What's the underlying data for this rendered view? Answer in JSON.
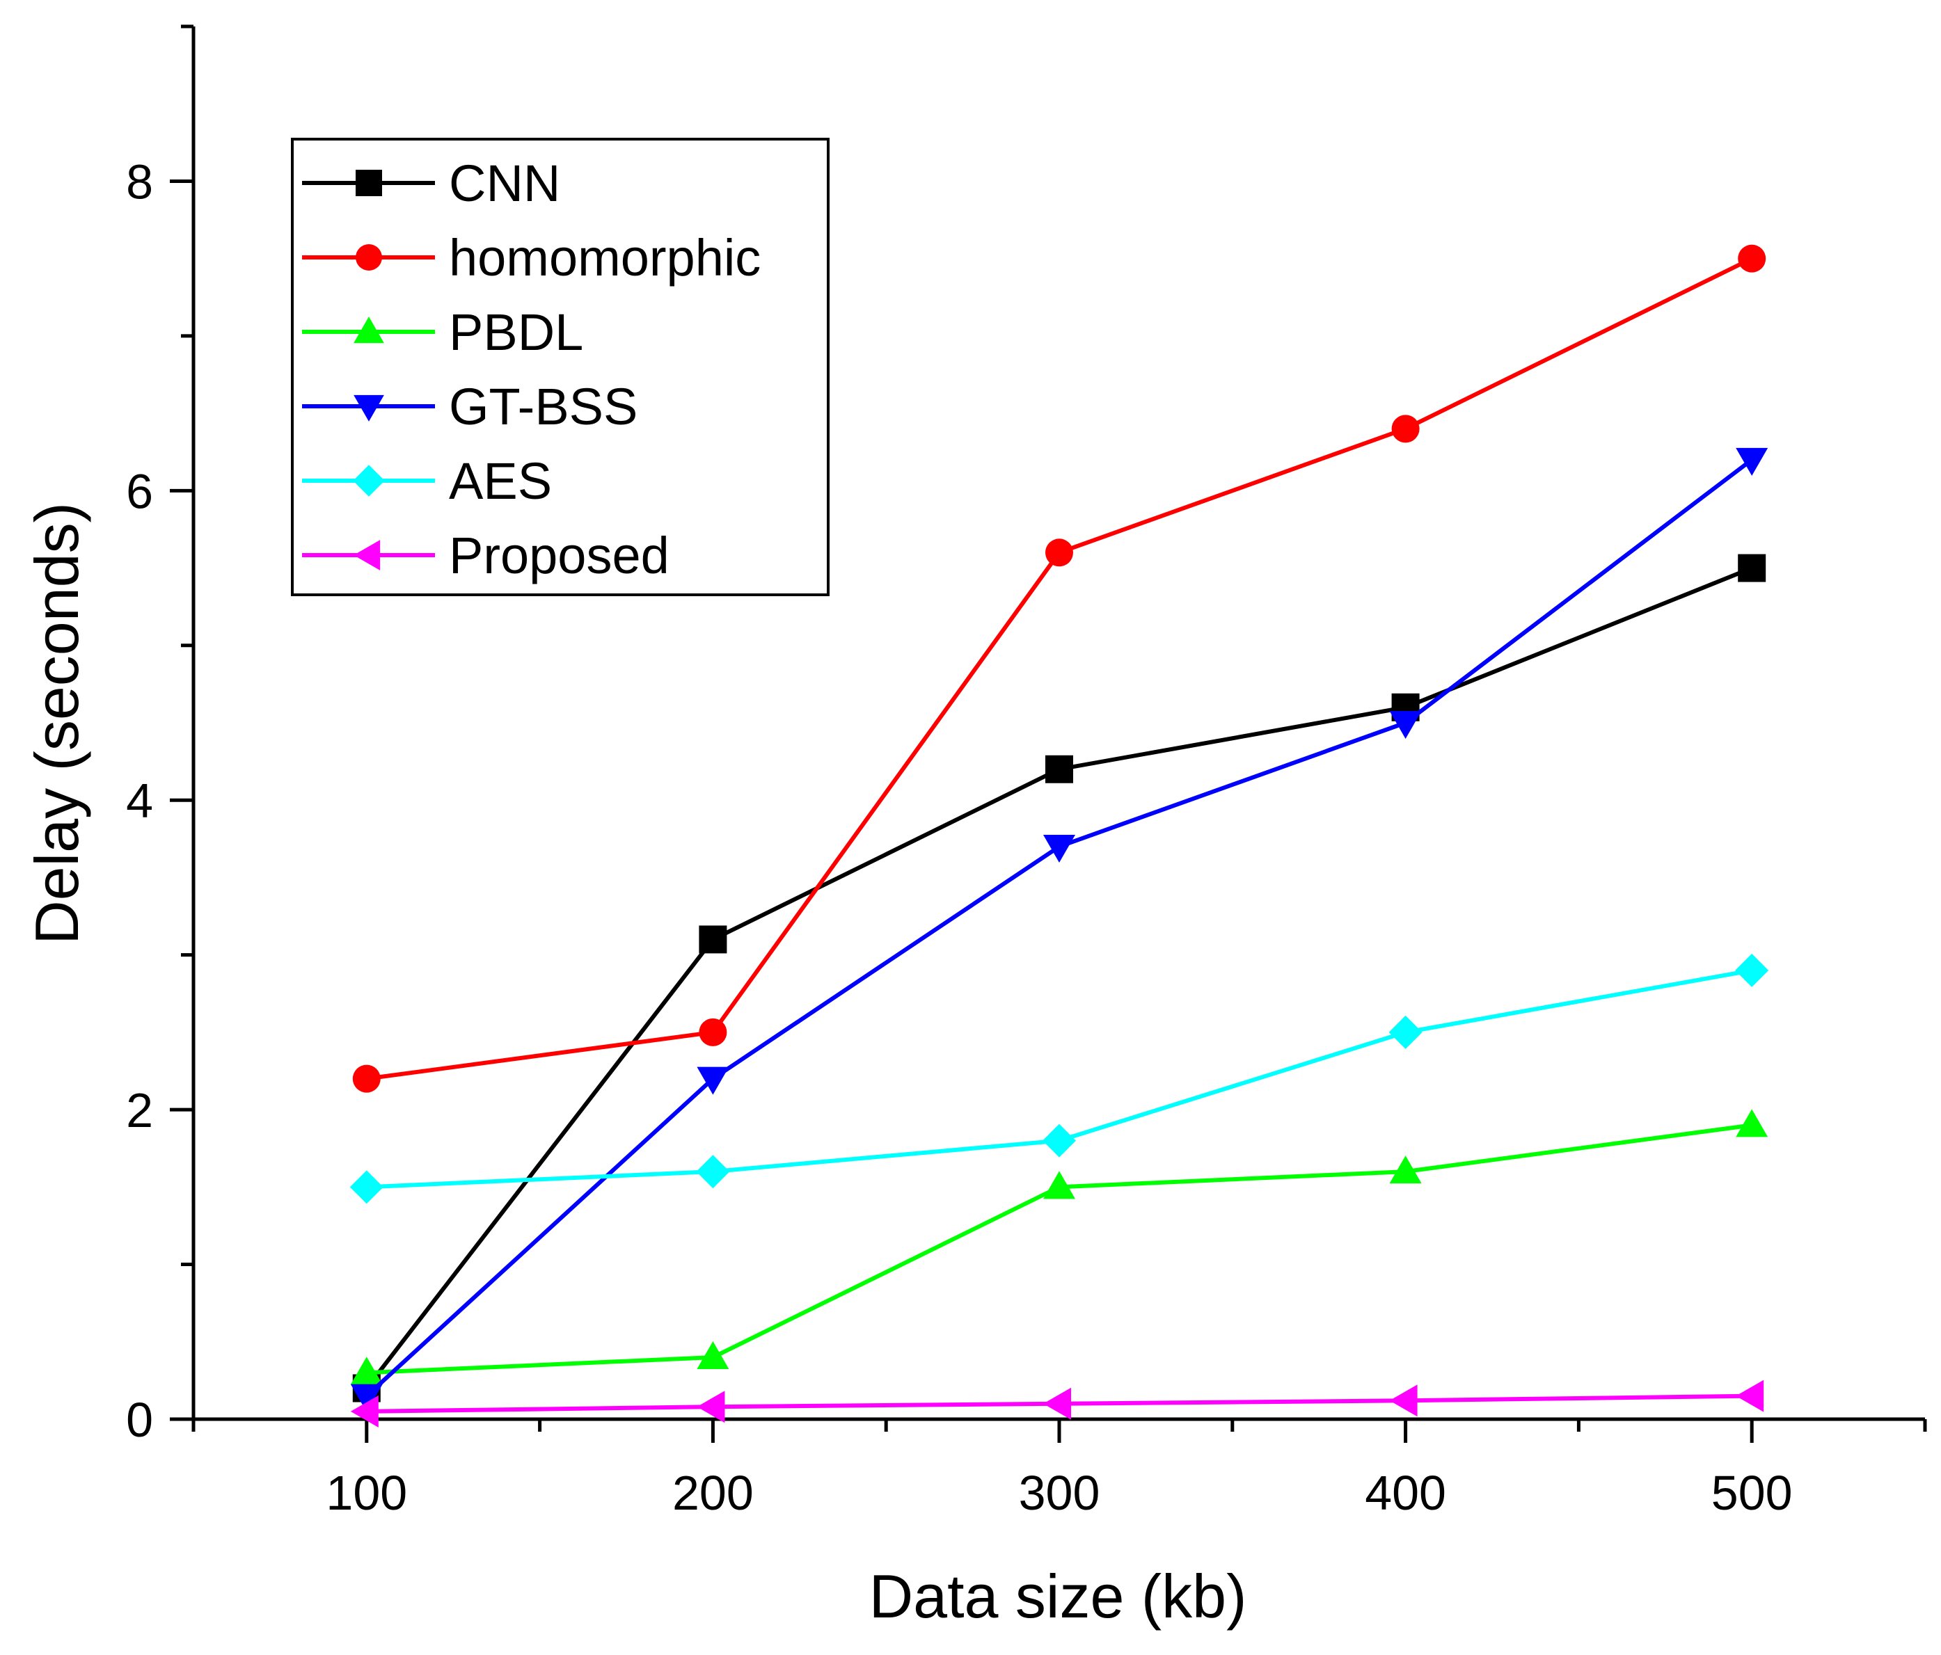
{
  "chart_data": {
    "type": "line",
    "title": "",
    "xlabel": "Data size (kb)",
    "ylabel": "Delay (seconds)",
    "xlim": [
      50,
      550
    ],
    "ylim": [
      0,
      9
    ],
    "x": [
      100,
      200,
      300,
      400,
      500
    ],
    "xticks": [
      100,
      200,
      300,
      400,
      500
    ],
    "xtick_labels": [
      "100",
      "200",
      "300",
      "400",
      "500"
    ],
    "yticks": [
      0,
      2,
      4,
      6,
      8
    ],
    "ytick_labels": [
      "0",
      "2",
      "4",
      "6",
      "8"
    ],
    "grid": false,
    "legend_position": "top-left",
    "series": [
      {
        "name": "CNN",
        "color": "#000000",
        "marker": "square",
        "values": [
          0.2,
          3.1,
          4.2,
          4.6,
          5.5
        ]
      },
      {
        "name": "homomorphic",
        "color": "#ff0000",
        "marker": "circle",
        "values": [
          2.2,
          2.5,
          5.6,
          6.4,
          7.5
        ]
      },
      {
        "name": "PBDL",
        "color": "#00ff00",
        "marker": "triangle-up",
        "values": [
          0.3,
          0.4,
          1.5,
          1.6,
          1.9
        ]
      },
      {
        "name": "GT-BSS",
        "color": "#0000ff",
        "marker": "triangle-down",
        "values": [
          0.15,
          2.2,
          3.7,
          4.5,
          6.2
        ]
      },
      {
        "name": "AES",
        "color": "#00ffff",
        "marker": "diamond",
        "values": [
          1.5,
          1.6,
          1.8,
          2.5,
          2.9
        ]
      },
      {
        "name": "Proposed",
        "color": "#ff00ff",
        "marker": "triangle-left",
        "values": [
          0.05,
          0.08,
          0.1,
          0.12,
          0.15
        ]
      }
    ]
  }
}
